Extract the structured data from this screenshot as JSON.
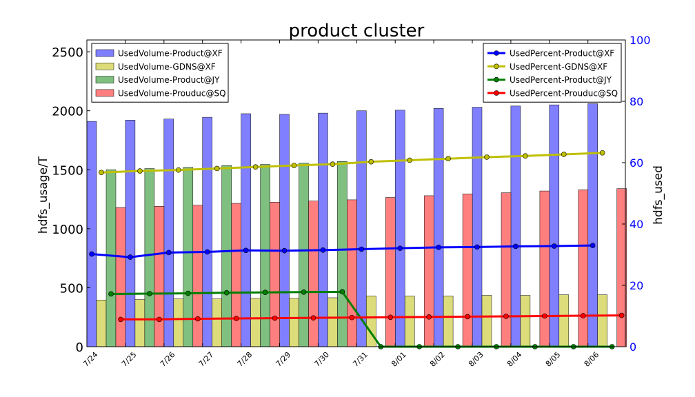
{
  "chart_data": {
    "type": "bar",
    "title": "product cluster",
    "ylabel": "hdfs_usage/T",
    "y2label": "hdfs_used",
    "ylim": [
      0,
      2600
    ],
    "y2lim": [
      0,
      100
    ],
    "yticks": [
      0,
      500,
      1000,
      1500,
      2000,
      2500
    ],
    "y2ticks": [
      0,
      20,
      40,
      60,
      80,
      100
    ],
    "grid": false,
    "categories": [
      "7/24",
      "7/25",
      "7/26",
      "7/27",
      "7/28",
      "7/29",
      "7/30",
      "7/31",
      "8/01",
      "8/02",
      "8/03",
      "8/04",
      "8/05",
      "8/06"
    ],
    "bar_series": [
      {
        "name": "UsedVolume-Product@XF",
        "color": "#7f7fff",
        "values": [
          1910,
          1920,
          1930,
          1945,
          1975,
          1970,
          1980,
          2000,
          2005,
          2020,
          2030,
          2040,
          2050,
          2060
        ]
      },
      {
        "name": "UsedVolume-GDNS@XF",
        "color": "#dcdc7a",
        "values": [
          395,
          400,
          405,
          405,
          410,
          410,
          415,
          430,
          430,
          430,
          435,
          435,
          440,
          440
        ]
      },
      {
        "name": "UsedVolume-Product@JY",
        "color": "#7fbf7f",
        "values": [
          1500,
          1510,
          1520,
          1535,
          1545,
          1555,
          1570,
          0,
          0,
          0,
          0,
          0,
          0,
          0
        ]
      },
      {
        "name": "UsedVolume-Prouduc@SQ",
        "color": "#ff7f7f",
        "values": [
          1180,
          1190,
          1200,
          1215,
          1225,
          1235,
          1245,
          1265,
          1280,
          1295,
          1305,
          1320,
          1330,
          1340
        ]
      }
    ],
    "line_series": [
      {
        "name": "UsedPercent-Product@XF",
        "color": "#0000ff",
        "values": [
          30.2,
          29.2,
          30.7,
          30.9,
          31.4,
          31.3,
          31.5,
          31.8,
          32.1,
          32.4,
          32.5,
          32.7,
          32.8,
          33.0
        ]
      },
      {
        "name": "UsedPercent-GDNS@XF",
        "color": "#bfbf00",
        "values": [
          56.8,
          57.3,
          57.6,
          58.1,
          58.6,
          59.1,
          59.5,
          60.3,
          60.8,
          61.3,
          61.8,
          62.2,
          62.7,
          63.2
        ]
      },
      {
        "name": "UsedPercent-Product@JY",
        "color": "#007f00",
        "values": [
          17.2,
          17.3,
          17.4,
          17.6,
          17.7,
          17.8,
          17.9,
          0,
          0,
          0,
          0,
          0,
          0,
          0
        ]
      },
      {
        "name": "UsedPercent-Prouduc@SQ",
        "color": "#ff0000",
        "values": [
          8.9,
          8.9,
          9.1,
          9.2,
          9.3,
          9.4,
          9.5,
          9.6,
          9.7,
          9.8,
          9.9,
          10.0,
          10.1,
          10.2
        ]
      }
    ],
    "legend_left_placement": "top-left",
    "legend_right_placement": "top-right"
  }
}
